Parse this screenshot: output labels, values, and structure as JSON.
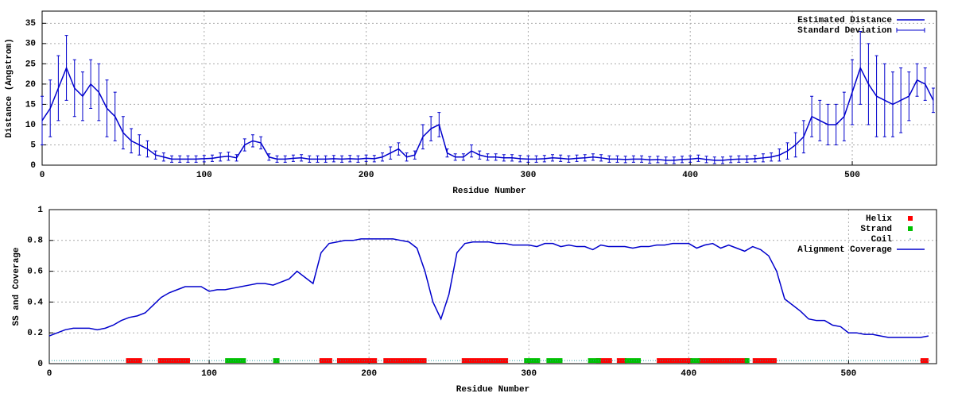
{
  "chart_data": [
    {
      "type": "line",
      "xlabel": "Residue Number",
      "ylabel": "Distance (Angstrom)",
      "xlim": [
        0,
        552
      ],
      "ylim": [
        0,
        38
      ],
      "xticks": [
        0,
        100,
        200,
        300,
        400,
        500
      ],
      "yticks": [
        0,
        5,
        10,
        15,
        20,
        25,
        30,
        35
      ],
      "grid": true,
      "legend": "top-right",
      "x": [
        0,
        5,
        10,
        15,
        20,
        25,
        30,
        35,
        40,
        45,
        50,
        55,
        60,
        65,
        70,
        75,
        80,
        85,
        90,
        95,
        100,
        105,
        110,
        115,
        120,
        125,
        130,
        135,
        140,
        145,
        150,
        155,
        160,
        165,
        170,
        175,
        180,
        185,
        190,
        195,
        200,
        205,
        210,
        215,
        220,
        225,
        230,
        235,
        240,
        245,
        250,
        255,
        260,
        265,
        270,
        275,
        280,
        285,
        290,
        295,
        300,
        305,
        310,
        315,
        320,
        325,
        330,
        335,
        340,
        345,
        350,
        355,
        360,
        365,
        370,
        375,
        380,
        385,
        390,
        395,
        400,
        405,
        410,
        415,
        420,
        425,
        430,
        435,
        440,
        445,
        450,
        455,
        460,
        465,
        470,
        475,
        480,
        485,
        490,
        495,
        500,
        505,
        510,
        515,
        520,
        525,
        530,
        535,
        540,
        545,
        550
      ],
      "series": [
        {
          "name": "Estimated Distance",
          "color": "#0000cc",
          "style": "line",
          "values": [
            11,
            14,
            19,
            24,
            19,
            17,
            20,
            18,
            14,
            12,
            8,
            6,
            5,
            4,
            2.5,
            2,
            1.5,
            1.5,
            1.5,
            1.5,
            1.6,
            1.7,
            2,
            2.2,
            1.8,
            5,
            6,
            5.5,
            2,
            1.5,
            1.5,
            1.7,
            1.8,
            1.5,
            1.5,
            1.5,
            1.6,
            1.5,
            1.6,
            1.5,
            1.7,
            1.6,
            2,
            3,
            4,
            2,
            2.5,
            7,
            9,
            10,
            3,
            2,
            2,
            3.5,
            2.5,
            2,
            2,
            1.8,
            1.8,
            1.6,
            1.5,
            1.5,
            1.6,
            1.8,
            1.7,
            1.5,
            1.7,
            1.8,
            2,
            1.8,
            1.5,
            1.5,
            1.4,
            1.5,
            1.5,
            1.3,
            1.4,
            1.2,
            1.2,
            1.4,
            1.5,
            1.7,
            1.4,
            1.2,
            1.2,
            1.4,
            1.5,
            1.5,
            1.6,
            1.8,
            2,
            2.5,
            3.5,
            5,
            7,
            12,
            11,
            10,
            10,
            12,
            18,
            24,
            20,
            17,
            16,
            15,
            16,
            17,
            21,
            20,
            16
          ]
        },
        {
          "name": "Standard Deviation",
          "color": "#0000cc",
          "style": "errorbar",
          "values": [
            6,
            7,
            8,
            8,
            7,
            6,
            6,
            7,
            7,
            6,
            4,
            3,
            2.5,
            2,
            1,
            1,
            0.8,
            0.8,
            0.8,
            0.8,
            0.8,
            0.8,
            1,
            1,
            0.8,
            1.5,
            1.5,
            1.5,
            0.8,
            0.8,
            0.8,
            0.8,
            0.8,
            0.8,
            0.8,
            0.8,
            0.8,
            0.8,
            0.8,
            0.8,
            0.8,
            0.8,
            1,
            1.5,
            1.5,
            1,
            1,
            3,
            3,
            3,
            1,
            0.8,
            0.8,
            1.5,
            1,
            0.8,
            0.8,
            0.8,
            0.8,
            0.8,
            0.8,
            0.8,
            0.8,
            0.8,
            0.8,
            0.8,
            0.8,
            0.8,
            0.8,
            0.8,
            0.8,
            0.8,
            0.8,
            0.8,
            0.8,
            0.8,
            0.8,
            0.8,
            0.8,
            0.8,
            0.8,
            0.8,
            0.8,
            0.8,
            0.8,
            0.8,
            0.8,
            0.8,
            0.8,
            1,
            1,
            1.5,
            2,
            3,
            4,
            5,
            5,
            5,
            5,
            6,
            8,
            9,
            10,
            10,
            9,
            8,
            8,
            6,
            4,
            4,
            3
          ]
        }
      ]
    },
    {
      "type": "line",
      "xlabel": "Residue Number",
      "ylabel": "SS and Coverage",
      "xlim": [
        0,
        555
      ],
      "ylim": [
        0,
        1
      ],
      "xticks": [
        0,
        100,
        200,
        300,
        400,
        500
      ],
      "yticks": [
        0,
        0.2,
        0.4,
        0.6,
        0.8,
        1
      ],
      "grid": true,
      "legend": "top-right",
      "x": [
        0,
        5,
        10,
        15,
        20,
        25,
        30,
        35,
        40,
        45,
        50,
        55,
        60,
        65,
        70,
        75,
        80,
        85,
        90,
        95,
        100,
        105,
        110,
        115,
        120,
        125,
        130,
        135,
        140,
        145,
        150,
        155,
        160,
        165,
        170,
        175,
        180,
        185,
        190,
        195,
        200,
        205,
        210,
        215,
        220,
        225,
        230,
        235,
        240,
        245,
        250,
        255,
        260,
        265,
        270,
        275,
        280,
        285,
        290,
        295,
        300,
        305,
        310,
        315,
        320,
        325,
        330,
        335,
        340,
        345,
        350,
        355,
        360,
        365,
        370,
        375,
        380,
        385,
        390,
        395,
        400,
        405,
        410,
        415,
        420,
        425,
        430,
        435,
        440,
        445,
        450,
        455,
        460,
        465,
        470,
        475,
        480,
        485,
        490,
        495,
        500,
        505,
        510,
        515,
        520,
        525,
        530,
        535,
        540,
        545,
        550
      ],
      "series": [
        {
          "name": "Helix",
          "color": "#ff0000",
          "style": "ranges",
          "y": 0.02,
          "ranges": [
            [
              48,
              58
            ],
            [
              68,
              88
            ],
            [
              169,
              177
            ],
            [
              180,
              205
            ],
            [
              209,
              236
            ],
            [
              258,
              287
            ],
            [
              342,
              352
            ],
            [
              355,
              361
            ],
            [
              380,
              402
            ],
            [
              406,
              437
            ],
            [
              440,
              455
            ],
            [
              545,
              550
            ]
          ]
        },
        {
          "name": "Strand",
          "color": "#00c000",
          "style": "ranges",
          "y": 0.02,
          "ranges": [
            [
              110,
              123
            ],
            [
              140,
              144
            ],
            [
              297,
              307
            ],
            [
              311,
              321
            ],
            [
              337,
              345
            ],
            [
              360,
              370
            ],
            [
              401,
              407
            ],
            [
              435,
              438
            ]
          ]
        },
        {
          "name": "Coil",
          "color": "#2a9fa0",
          "style": "dots",
          "y": 0.02,
          "ranges": [
            [
              0,
              552
            ]
          ]
        },
        {
          "name": "Alignment Coverage",
          "color": "#0000cc",
          "style": "line",
          "values": [
            0.18,
            0.2,
            0.22,
            0.23,
            0.23,
            0.23,
            0.22,
            0.23,
            0.25,
            0.28,
            0.3,
            0.31,
            0.33,
            0.38,
            0.43,
            0.46,
            0.48,
            0.5,
            0.5,
            0.5,
            0.47,
            0.48,
            0.48,
            0.49,
            0.5,
            0.51,
            0.52,
            0.52,
            0.51,
            0.53,
            0.55,
            0.6,
            0.56,
            0.52,
            0.72,
            0.78,
            0.79,
            0.8,
            0.8,
            0.81,
            0.81,
            0.81,
            0.81,
            0.81,
            0.8,
            0.79,
            0.75,
            0.6,
            0.4,
            0.29,
            0.45,
            0.72,
            0.78,
            0.79,
            0.79,
            0.79,
            0.78,
            0.78,
            0.77,
            0.77,
            0.77,
            0.76,
            0.78,
            0.78,
            0.76,
            0.77,
            0.76,
            0.76,
            0.74,
            0.77,
            0.76,
            0.76,
            0.76,
            0.75,
            0.76,
            0.76,
            0.77,
            0.77,
            0.78,
            0.78,
            0.78,
            0.75,
            0.77,
            0.78,
            0.75,
            0.77,
            0.75,
            0.73,
            0.76,
            0.74,
            0.7,
            0.6,
            0.42,
            0.38,
            0.34,
            0.29,
            0.28,
            0.28,
            0.25,
            0.24,
            0.2,
            0.2,
            0.19,
            0.19,
            0.18,
            0.17,
            0.17,
            0.17,
            0.17,
            0.17,
            0.18
          ]
        }
      ]
    }
  ]
}
